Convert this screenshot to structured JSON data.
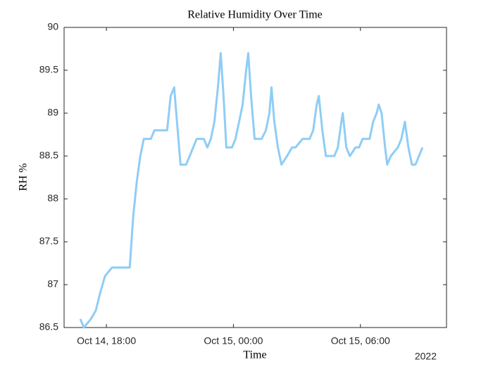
{
  "chart_data": {
    "type": "line",
    "title": "Relative Humidity Over Time",
    "x_label": "Time",
    "y_label": "RH %",
    "x_year_label": "2022",
    "x": [
      "2022-10-14T16:46",
      "2022-10-14T16:56",
      "2022-10-14T17:16",
      "2022-10-14T17:30",
      "2022-10-14T17:42",
      "2022-10-14T17:56",
      "2022-10-14T18:16",
      "2022-10-14T18:46",
      "2022-10-14T19:06",
      "2022-10-14T19:16",
      "2022-10-14T19:26",
      "2022-10-14T19:36",
      "2022-10-14T19:46",
      "2022-10-14T20:06",
      "2022-10-14T20:16",
      "2022-10-14T20:36",
      "2022-10-14T20:52",
      "2022-10-14T21:02",
      "2022-10-14T21:12",
      "2022-10-14T21:20",
      "2022-10-14T21:30",
      "2022-10-14T21:46",
      "2022-10-14T21:56",
      "2022-10-14T22:06",
      "2022-10-14T22:16",
      "2022-10-14T22:36",
      "2022-10-14T22:46",
      "2022-10-14T22:56",
      "2022-10-14T23:06",
      "2022-10-14T23:16",
      "2022-10-14T23:24",
      "2022-10-14T23:32",
      "2022-10-14T23:40",
      "2022-10-14T23:56",
      "2022-10-15T00:06",
      "2022-10-15T00:16",
      "2022-10-15T00:26",
      "2022-10-15T00:36",
      "2022-10-15T00:42",
      "2022-10-15T00:50",
      "2022-10-15T01:00",
      "2022-10-15T01:20",
      "2022-10-15T01:32",
      "2022-10-15T01:42",
      "2022-10-15T01:48",
      "2022-10-15T01:56",
      "2022-10-15T02:06",
      "2022-10-15T02:16",
      "2022-10-15T02:32",
      "2022-10-15T02:46",
      "2022-10-15T02:56",
      "2022-10-15T03:16",
      "2022-10-15T03:36",
      "2022-10-15T03:46",
      "2022-10-15T03:56",
      "2022-10-15T04:02",
      "2022-10-15T04:12",
      "2022-10-15T04:22",
      "2022-10-15T04:32",
      "2022-10-15T04:46",
      "2022-10-15T04:56",
      "2022-10-15T05:06",
      "2022-10-15T05:10",
      "2022-10-15T05:20",
      "2022-10-15T05:30",
      "2022-10-15T05:46",
      "2022-10-15T05:56",
      "2022-10-15T06:06",
      "2022-10-15T06:26",
      "2022-10-15T06:36",
      "2022-10-15T06:46",
      "2022-10-15T06:52",
      "2022-10-15T07:00",
      "2022-10-15T07:10",
      "2022-10-15T07:16",
      "2022-10-15T07:26",
      "2022-10-15T07:46",
      "2022-10-15T07:56",
      "2022-10-15T08:06",
      "2022-10-15T08:16",
      "2022-10-15T08:26",
      "2022-10-15T08:36",
      "2022-10-15T08:46",
      "2022-10-15T08:56"
    ],
    "series": [
      {
        "name": "RH",
        "color": "#8fcdf5",
        "values": [
          86.6,
          86.5,
          86.6,
          86.7,
          86.9,
          87.1,
          87.2,
          87.2,
          87.2,
          87.8,
          88.2,
          88.5,
          88.7,
          88.7,
          88.8,
          88.8,
          88.8,
          89.2,
          89.3,
          88.9,
          88.4,
          88.4,
          88.5,
          88.6,
          88.7,
          88.7,
          88.6,
          88.7,
          88.9,
          89.3,
          89.7,
          89.2,
          88.6,
          88.6,
          88.7,
          88.9,
          89.1,
          89.5,
          89.7,
          89.2,
          88.7,
          88.7,
          88.8,
          89.0,
          89.3,
          88.9,
          88.6,
          88.4,
          88.5,
          88.6,
          88.6,
          88.7,
          88.7,
          88.8,
          89.1,
          89.2,
          88.8,
          88.5,
          88.5,
          88.5,
          88.6,
          88.9,
          89.0,
          88.6,
          88.5,
          88.6,
          88.6,
          88.7,
          88.7,
          88.9,
          89.0,
          89.1,
          89.0,
          88.6,
          88.4,
          88.5,
          88.6,
          88.7,
          88.9,
          88.6,
          88.4,
          88.4,
          88.5,
          88.6
        ]
      }
    ],
    "xlim": [
      "2022-10-14T16:00",
      "2022-10-15T10:04"
    ],
    "xticks": [
      {
        "value": "2022-10-14T18:00",
        "label": "Oct 14, 18:00"
      },
      {
        "value": "2022-10-15T00:00",
        "label": "Oct 15, 00:00"
      },
      {
        "value": "2022-10-15T06:00",
        "label": "Oct 15, 06:00"
      }
    ],
    "ylim": [
      86.5,
      90
    ],
    "yticks": [
      86.5,
      87,
      87.5,
      88,
      88.5,
      89,
      89.5,
      90
    ]
  }
}
